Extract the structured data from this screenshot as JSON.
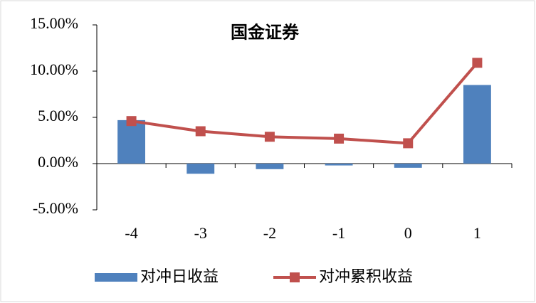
{
  "chart_data": {
    "type": "bar",
    "title": "国金证券",
    "categories": [
      "-4",
      "-3",
      "-2",
      "-1",
      "0",
      "1"
    ],
    "series": [
      {
        "name": "对冲日收益",
        "type": "bar",
        "color": "#4f81bd",
        "values": [
          4.7,
          -1.1,
          -0.6,
          -0.2,
          -0.45,
          8.5
        ]
      },
      {
        "name": "对冲累积收益",
        "type": "line",
        "color": "#c0504d",
        "values": [
          4.6,
          3.5,
          2.9,
          2.7,
          2.2,
          10.9
        ]
      }
    ],
    "ylim": [
      -5,
      15
    ],
    "yticks": [
      {
        "value": -5,
        "label": "-5.00%"
      },
      {
        "value": 0,
        "label": "0.00%"
      },
      {
        "value": 5,
        "label": "5.00%"
      },
      {
        "value": 10,
        "label": "10.00%"
      },
      {
        "value": 15,
        "label": "15.00%"
      }
    ],
    "legend": "bottom"
  }
}
